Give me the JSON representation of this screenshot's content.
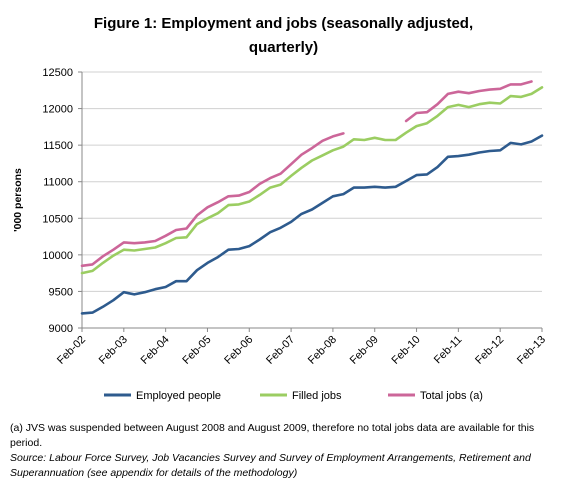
{
  "title_line1": "Figure 1: Employment and jobs (seasonally adjusted,",
  "title_line2": "quarterly)",
  "footnote": "(a) JVS was suspended between  August 2008 and August 2009, therefore no total jobs data are available for this period.",
  "source": "Source: Labour Force Survey, Job Vacancies Survey and Survey of Employment Arrangements, Retirement  and Superannuation (see appendix for details of the methodology)",
  "chart_data": {
    "type": "line",
    "ylabel": "'000 persons",
    "xlabel": "",
    "ylim": [
      9000,
      12500
    ],
    "yticks": [
      9000,
      9500,
      10000,
      10500,
      11000,
      11500,
      12000,
      12500
    ],
    "x_tick_labels": [
      "Feb-02",
      "Feb-03",
      "Feb-04",
      "Feb-05",
      "Feb-06",
      "Feb-07",
      "Feb-08",
      "Feb-09",
      "Feb-10",
      "Feb-11",
      "Feb-12",
      "Feb-13"
    ],
    "n_quarters": 45,
    "grid": "horizontal",
    "legend_position": "bottom",
    "series": [
      {
        "name": "Employed people",
        "color": "#2e5b8e",
        "values": [
          9200,
          9210,
          9290,
          9380,
          9490,
          9460,
          9490,
          9530,
          9560,
          9640,
          9640,
          9790,
          9890,
          9970,
          10070,
          10080,
          10120,
          10210,
          10310,
          10370,
          10450,
          10560,
          10620,
          10710,
          10800,
          10830,
          10920,
          10920,
          10930,
          10920,
          10930,
          11010,
          11090,
          11100,
          11200,
          11340,
          11350,
          11370,
          11400,
          11420,
          11430,
          11530,
          11510,
          11550,
          11630
        ]
      },
      {
        "name": "Filled jobs",
        "color": "#9bcd62",
        "values": [
          9750,
          9780,
          9890,
          9990,
          10070,
          10060,
          10080,
          10100,
          10160,
          10230,
          10240,
          10420,
          10500,
          10570,
          10680,
          10690,
          10730,
          10820,
          10920,
          10960,
          11080,
          11190,
          11290,
          11360,
          11430,
          11480,
          11580,
          11570,
          11600,
          11570,
          11570,
          11670,
          11760,
          11800,
          11900,
          12020,
          12050,
          12020,
          12060,
          12080,
          12070,
          12170,
          12160,
          12200,
          12290
        ]
      },
      {
        "name": "Total jobs (a)",
        "color": "#cc6699",
        "values": [
          9850,
          9870,
          9980,
          10070,
          10170,
          10160,
          10170,
          10190,
          10260,
          10340,
          10360,
          10540,
          10650,
          10720,
          10800,
          10810,
          10860,
          10970,
          11050,
          11110,
          11240,
          11370,
          11460,
          11560,
          11620,
          11660,
          null,
          null,
          null,
          null,
          null,
          11830,
          11940,
          11950,
          12060,
          12200,
          12230,
          12210,
          12240,
          12260,
          12270,
          12330,
          12330,
          12370,
          null
        ]
      }
    ]
  }
}
